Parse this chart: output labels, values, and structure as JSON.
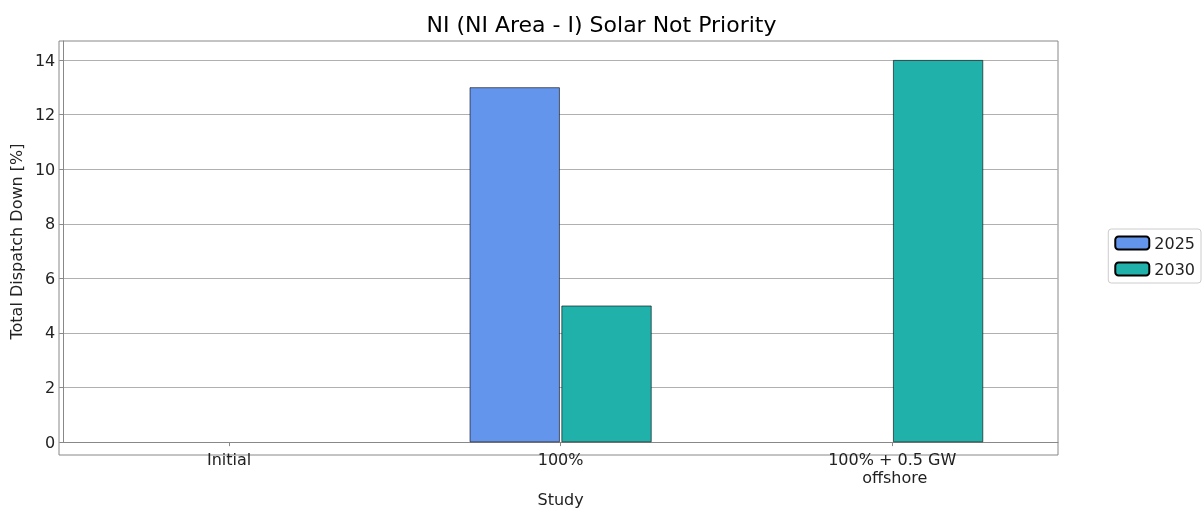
{
  "chart_data": {
    "type": "bar",
    "title": "NI (NI Area - I) Solar Not Priority",
    "xlabel": "Study",
    "ylabel": "Total Dispatch Down [%]",
    "categories": [
      "Initial",
      "100%",
      "100% + 0.5 GW offshore"
    ],
    "series": [
      {
        "name": "2025",
        "color": "#6495ed",
        "values": [
          null,
          13,
          null
        ]
      },
      {
        "name": "2030",
        "color": "#20b2aa",
        "values": [
          null,
          5,
          14
        ]
      }
    ],
    "ylim": [
      0,
      14.7
    ],
    "yticks": [
      0,
      2,
      4,
      6,
      8,
      10,
      12,
      14
    ],
    "grid": "y",
    "legend": "right"
  }
}
